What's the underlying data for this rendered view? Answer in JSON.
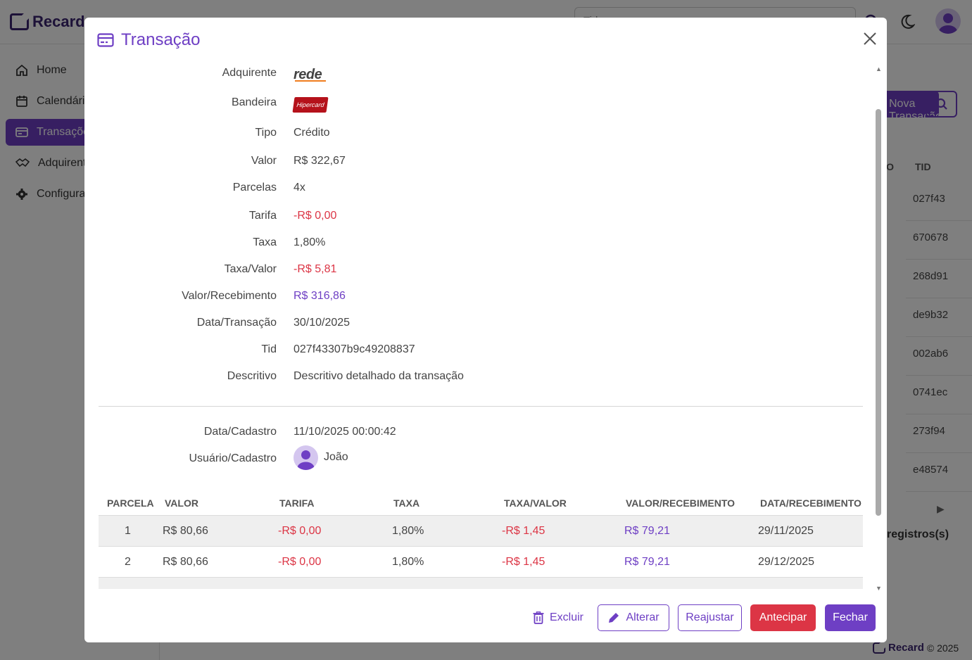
{
  "app": {
    "brand": "Recard",
    "search_placeholder": "Tid",
    "sidebar": [
      {
        "label": "Home",
        "icon": "home-icon"
      },
      {
        "label": "Calendário",
        "icon": "calendar-icon"
      },
      {
        "label": "Transações",
        "icon": "card-icon",
        "active": true
      },
      {
        "label": "Adquirentes",
        "icon": "handshake-icon"
      },
      {
        "label": "Configurações",
        "icon": "gear-icon"
      }
    ],
    "new_button": "Nova Transação",
    "columns": [
      "ÃO",
      "TID"
    ],
    "tid_rows": [
      "027f43",
      "670678",
      "268d91",
      "de9b32",
      "002ab6",
      "0741ec",
      "273f94",
      "e48574"
    ],
    "records_label": "registros(s)",
    "footer_brand": "Recard",
    "footer_year": "© 2025"
  },
  "modal": {
    "title": "Transação",
    "fields": {
      "adquirente": {
        "label": "Adquirente",
        "logo_text": "rede"
      },
      "bandeira": {
        "label": "Bandeira",
        "logo_text": "Hipercard"
      },
      "tipo": {
        "label": "Tipo",
        "value": "Crédito"
      },
      "valor": {
        "label": "Valor",
        "value": "R$ 322,67"
      },
      "parcelas": {
        "label": "Parcelas",
        "value": "4x"
      },
      "tarifa": {
        "label": "Tarifa",
        "value": "-R$ 0,00"
      },
      "taxa": {
        "label": "Taxa",
        "value": "1,80%"
      },
      "taxa_valor": {
        "label": "Taxa/Valor",
        "value": "-R$ 5,81"
      },
      "valor_recebimento": {
        "label": "Valor/Recebimento",
        "value": "R$ 316,86"
      },
      "data_transacao": {
        "label": "Data/Transação",
        "value": "30/10/2025"
      },
      "tid": {
        "label": "Tid",
        "value": "027f43307b9c49208837"
      },
      "descritivo": {
        "label": "Descritivo",
        "value": "Descritivo detalhado da transação"
      },
      "data_cadastro": {
        "label": "Data/Cadastro",
        "value": "11/10/2025 00:00:42"
      },
      "usuario_cadastro": {
        "label": "Usuário/Cadastro",
        "value": "João"
      }
    },
    "installments": {
      "headers": [
        "PARCELA",
        "VALOR",
        "TARIFA",
        "TAXA",
        "TAXA/VALOR",
        "VALOR/RECEBIMENTO",
        "DATA/RECEBIMENTO"
      ],
      "rows": [
        {
          "parcela": "1",
          "valor": "R$ 80,66",
          "tarifa": "-R$ 0,00",
          "taxa": "1,80%",
          "taxa_valor": "-R$ 1,45",
          "valor_recebimento": "R$ 79,21",
          "data_recebimento": "29/11/2025"
        },
        {
          "parcela": "2",
          "valor": "R$ 80,66",
          "tarifa": "-R$ 0,00",
          "taxa": "1,80%",
          "taxa_valor": "-R$ 1,45",
          "valor_recebimento": "R$ 79,21",
          "data_recebimento": "29/12/2025"
        }
      ]
    },
    "buttons": {
      "excluir": "Excluir",
      "alterar": "Alterar",
      "reajustar": "Reajustar",
      "antecipar": "Antecipar",
      "fechar": "Fechar"
    }
  },
  "colors": {
    "primary": "#6e3fc4",
    "danger": "#dc3545",
    "brand_dark": "#3b2470"
  }
}
